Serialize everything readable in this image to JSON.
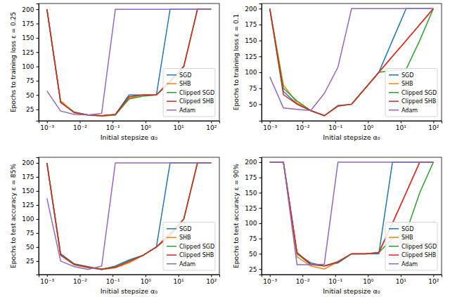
{
  "chart_data": [
    {
      "type": "line",
      "log": "x",
      "legend": "lower right",
      "x_label": "Initial stepsize α₀",
      "y_label": "Epochs to training loss ε = 0.25",
      "x": [
        0.001,
        0.00261,
        0.00681,
        0.0178,
        0.0464,
        0.121,
        0.316,
        0.825,
        2.15,
        5.62,
        14.7,
        38.3,
        100
      ],
      "xlim": [
        0.00056,
        178
      ],
      "ylim": [
        5,
        210
      ],
      "xticks": [
        {
          "value": 0.001,
          "label": "10⁻³"
        },
        {
          "value": 0.01,
          "label": "10⁻²"
        },
        {
          "value": 0.1,
          "label": "10⁻¹"
        },
        {
          "value": 1,
          "label": "10⁰"
        },
        {
          "value": 10,
          "label": "10¹"
        },
        {
          "value": 100,
          "label": "10²"
        }
      ],
      "yticks": [
        25,
        50,
        75,
        100,
        125,
        150,
        175,
        200
      ],
      "series": [
        {
          "name": "SGD",
          "color": "#1f77b4",
          "values": [
            200,
            38,
            20,
            15,
            14,
            16,
            50,
            50,
            50,
            200,
            200,
            200,
            200
          ]
        },
        {
          "name": "SHB",
          "color": "#ff7f0e",
          "values": [
            200,
            40,
            19,
            15,
            13,
            15,
            45,
            50,
            50,
            75,
            100,
            200,
            200
          ]
        },
        {
          "name": "Clipped SGD",
          "color": "#2ca02c",
          "values": [
            200,
            37,
            20,
            15,
            14,
            15,
            43,
            48,
            50,
            72,
            100,
            200,
            200
          ]
        },
        {
          "name": "Clipped SHB",
          "color": "#d62728",
          "values": [
            200,
            37,
            19,
            15,
            14,
            16,
            47,
            50,
            50,
            75,
            100,
            200,
            200
          ]
        },
        {
          "name": "Adam",
          "color": "#9467bd",
          "values": [
            57,
            22,
            16,
            15,
            18,
            200,
            200,
            200,
            200,
            200,
            200,
            200,
            200
          ]
        }
      ]
    },
    {
      "type": "line",
      "log": "x",
      "legend": "lower right",
      "x_label": "Initial stepsize α₀",
      "y_label": "Epochs to training loss ε = 0.1",
      "x": [
        0.001,
        0.00261,
        0.00681,
        0.0178,
        0.0464,
        0.121,
        0.316,
        0.825,
        2.15,
        5.62,
        14.7,
        38.3,
        100
      ],
      "xlim": [
        0.00056,
        178
      ],
      "ylim": [
        24,
        208
      ],
      "xticks": [
        {
          "value": 0.001,
          "label": "10⁻³"
        },
        {
          "value": 0.01,
          "label": "10⁻²"
        },
        {
          "value": 0.1,
          "label": "10⁻¹"
        },
        {
          "value": 1,
          "label": "10⁰"
        },
        {
          "value": 10,
          "label": "10¹"
        },
        {
          "value": 100,
          "label": "10²"
        }
      ],
      "yticks": [
        50,
        75,
        100,
        125,
        150,
        175,
        200
      ],
      "series": [
        {
          "name": "SGD",
          "color": "#1f77b4",
          "values": [
            200,
            70,
            50,
            40,
            32,
            48,
            50,
            75,
            100,
            150,
            200,
            200,
            200
          ]
        },
        {
          "name": "SHB",
          "color": "#ff7f0e",
          "values": [
            200,
            80,
            52,
            40,
            32,
            47,
            50,
            75,
            100,
            125,
            150,
            175,
            200
          ]
        },
        {
          "name": "Clipped SGD",
          "color": "#2ca02c",
          "values": [
            200,
            75,
            55,
            40,
            32,
            47,
            50,
            75,
            100,
            103,
            105,
            150,
            200
          ]
        },
        {
          "name": "Clipped SHB",
          "color": "#d62728",
          "values": [
            200,
            65,
            50,
            40,
            32,
            47,
            50,
            75,
            100,
            125,
            150,
            175,
            200
          ]
        },
        {
          "name": "Adam",
          "color": "#9467bd",
          "values": [
            93,
            44,
            42,
            40,
            67,
            108,
            200,
            200,
            200,
            200,
            200,
            200,
            200
          ]
        }
      ]
    },
    {
      "type": "line",
      "log": "x",
      "legend": "lower right",
      "x_label": "Initial stepsize α₀",
      "y_label": "Epochs to test accuracy ε = 85%",
      "x": [
        0.001,
        0.00261,
        0.00681,
        0.0178,
        0.0464,
        0.121,
        0.316,
        0.825,
        2.15,
        5.62,
        14.7,
        38.3,
        100
      ],
      "xlim": [
        0.00056,
        178
      ],
      "ylim": [
        1,
        210
      ],
      "xticks": [
        {
          "value": 0.001,
          "label": "10⁻³"
        },
        {
          "value": 0.01,
          "label": "10⁻²"
        },
        {
          "value": 0.1,
          "label": "10⁻¹"
        },
        {
          "value": 1,
          "label": "10⁰"
        },
        {
          "value": 10,
          "label": "10¹"
        },
        {
          "value": 100,
          "label": "10²"
        }
      ],
      "yticks": [
        25,
        50,
        75,
        100,
        125,
        150,
        175,
        200
      ],
      "series": [
        {
          "name": "SGD",
          "color": "#1f77b4",
          "values": [
            200,
            38,
            20,
            15,
            10,
            16,
            27,
            35,
            50,
            200,
            200,
            200,
            200
          ]
        },
        {
          "name": "SHB",
          "color": "#ff7f0e",
          "values": [
            200,
            35,
            18,
            13,
            10,
            13,
            22,
            35,
            50,
            75,
            100,
            200,
            200
          ]
        },
        {
          "name": "Clipped SGD",
          "color": "#2ca02c",
          "values": [
            200,
            36,
            19,
            14,
            11,
            14,
            25,
            35,
            50,
            70,
            100,
            200,
            200
          ]
        },
        {
          "name": "Clipped SHB",
          "color": "#d62728",
          "values": [
            200,
            36,
            19,
            14,
            10,
            14,
            24,
            35,
            50,
            72,
            100,
            200,
            200
          ]
        },
        {
          "name": "Adam",
          "color": "#9467bd",
          "values": [
            137,
            25,
            15,
            10,
            16,
            200,
            200,
            200,
            200,
            200,
            200,
            200,
            200
          ]
        }
      ]
    },
    {
      "type": "line",
      "log": "x",
      "legend": "lower right",
      "x_label": "Initial stepsize α₀",
      "y_label": "Epochs to test accuracy ε = 90%",
      "x": [
        0.001,
        0.00261,
        0.00681,
        0.0178,
        0.0464,
        0.121,
        0.316,
        0.825,
        2.15,
        5.62,
        14.7,
        38.3,
        100
      ],
      "xlim": [
        0.00056,
        178
      ],
      "ylim": [
        16,
        208
      ],
      "xticks": [
        {
          "value": 0.001,
          "label": "10⁻³"
        },
        {
          "value": 0.01,
          "label": "10⁻²"
        },
        {
          "value": 0.1,
          "label": "10⁻¹"
        },
        {
          "value": 1,
          "label": "10⁰"
        },
        {
          "value": 10,
          "label": "10¹"
        },
        {
          "value": 100,
          "label": "10²"
        }
      ],
      "yticks": [
        25,
        50,
        75,
        100,
        125,
        150,
        175,
        200
      ],
      "series": [
        {
          "name": "SGD",
          "color": "#1f77b4",
          "values": [
            200,
            200,
            50,
            35,
            30,
            35,
            50,
            50,
            50,
            200,
            200,
            200,
            200
          ]
        },
        {
          "name": "SHB",
          "color": "#ff7f0e",
          "values": [
            200,
            200,
            45,
            30,
            25,
            37,
            50,
            50,
            52,
            100,
            150,
            200,
            200
          ]
        },
        {
          "name": "Clipped SGD",
          "color": "#2ca02c",
          "values": [
            200,
            200,
            50,
            32,
            30,
            36,
            50,
            50,
            52,
            75,
            85,
            150,
            200
          ]
        },
        {
          "name": "Clipped SHB",
          "color": "#d62728",
          "values": [
            200,
            200,
            52,
            33,
            30,
            37,
            50,
            50,
            52,
            100,
            150,
            200,
            200
          ]
        },
        {
          "name": "Adam",
          "color": "#9467bd",
          "values": [
            200,
            200,
            32,
            32,
            33,
            200,
            200,
            200,
            200,
            200,
            200,
            200,
            200
          ]
        }
      ]
    }
  ]
}
